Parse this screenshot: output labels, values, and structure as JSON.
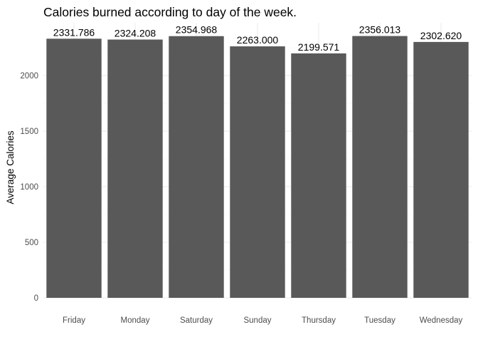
{
  "chart_data": {
    "type": "bar",
    "title": "Calories burned according to day of the week.",
    "xlabel": "",
    "ylabel": "Average Calories",
    "categories": [
      "Friday",
      "Monday",
      "Saturday",
      "Sunday",
      "Thursday",
      "Tuesday",
      "Wednesday"
    ],
    "values": [
      2331.786,
      2324.208,
      2354.968,
      2263.0,
      2199.571,
      2356.013,
      2302.62
    ],
    "value_labels": [
      "2331.786",
      "2324.208",
      "2354.968",
      "2263.000",
      "2199.571",
      "2356.013",
      "2302.620"
    ],
    "ylim": [
      0,
      2475
    ],
    "yticks": [
      0,
      500,
      1000,
      1500,
      2000
    ],
    "grid": true,
    "bar_color": "#595959",
    "background": "#ffffff"
  }
}
